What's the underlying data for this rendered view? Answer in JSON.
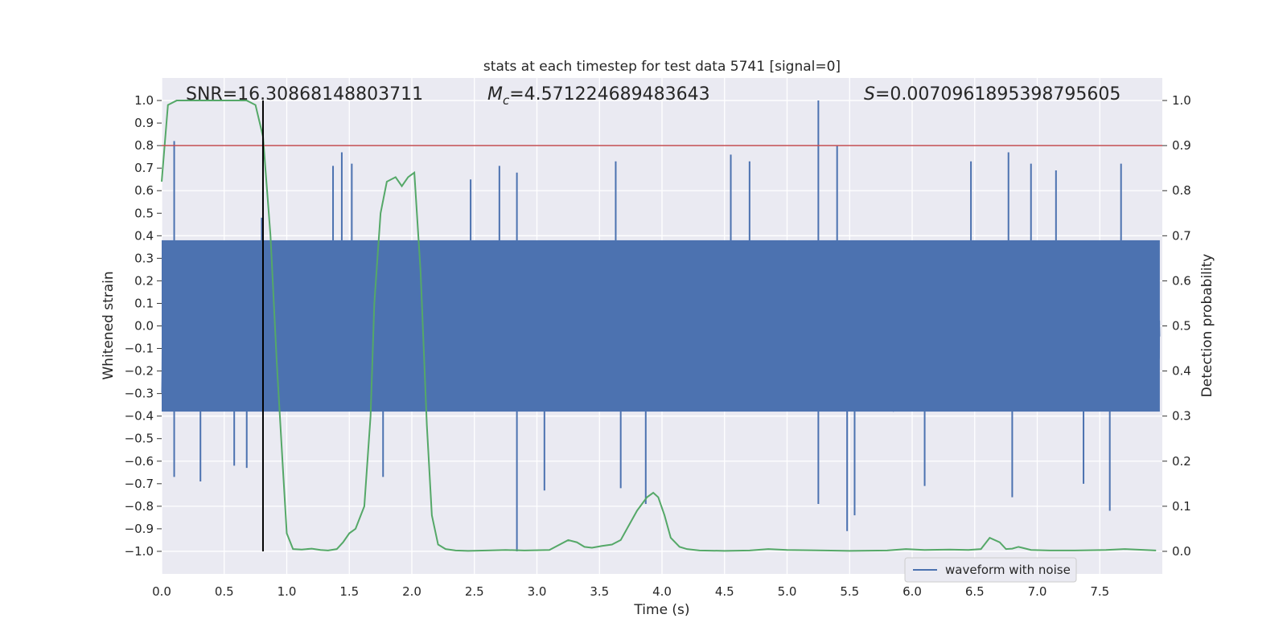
{
  "chart_data": {
    "type": "line",
    "title": "stats at each timestep for test data 5741 [signal=0]",
    "xlabel": "Time (s)",
    "ylabel_left": "Whitened strain",
    "ylabel_right": "Detection probability",
    "xlim": [
      0.0,
      8.0
    ],
    "ylim_left": [
      -1.1,
      1.1
    ],
    "ylim_right": [
      -0.05,
      1.05
    ],
    "x_ticks": [
      0.0,
      0.5,
      1.0,
      1.5,
      2.0,
      2.5,
      3.0,
      3.5,
      4.0,
      4.5,
      5.0,
      5.5,
      6.0,
      6.5,
      7.0,
      7.5
    ],
    "x_tick_labels": [
      "0.0",
      "0.5",
      "1.0",
      "1.5",
      "2.0",
      "2.5",
      "3.0",
      "3.5",
      "4.0",
      "4.5",
      "5.0",
      "5.5",
      "6.0",
      "6.5",
      "7.0",
      "7.5"
    ],
    "y_left_ticks": [
      1.0,
      0.9,
      0.8,
      0.7,
      0.6,
      0.5,
      0.4,
      0.3,
      0.2,
      0.1,
      0.0,
      -0.1,
      -0.2,
      -0.3,
      -0.4,
      -0.5,
      -0.6,
      -0.7,
      -0.8,
      -0.9,
      -1.0
    ],
    "y_left_tick_labels": [
      "1.0",
      "0.9",
      "0.8",
      "0.7",
      "0.6",
      "0.5",
      "0.4",
      "0.3",
      "0.2",
      "0.1",
      "0.0",
      "−0.1",
      "−0.2",
      "−0.3",
      "−0.4",
      "−0.5",
      "−0.6",
      "−0.7",
      "−0.8",
      "−0.9",
      "−1.0"
    ],
    "y_right_ticks": [
      1.0,
      0.9,
      0.8,
      0.7,
      0.6,
      0.5,
      0.4,
      0.3,
      0.2,
      0.1,
      0.0
    ],
    "y_right_tick_labels": [
      "1.0",
      "0.9",
      "0.8",
      "0.7",
      "0.6",
      "0.5",
      "0.4",
      "0.3",
      "0.2",
      "0.1",
      "0.0"
    ],
    "annotations": {
      "snr": "SNR=16.30868148803711",
      "mc_symbol": "M",
      "mc_subscript": "c",
      "mc_value": "=4.571224689483643",
      "s_symbol": "S",
      "s_value": "=0.007096189539879560 5"
    },
    "threshold": {
      "axis": "left",
      "value": 0.8,
      "color": "#c44e52"
    },
    "marker_line": {
      "x": 0.81,
      "y_from": -1.0,
      "y_to": 1.0,
      "color": "#000000"
    },
    "legend": {
      "position": "bottom-right",
      "entries": [
        {
          "label": "waveform with noise",
          "color": "#4c72b0"
        }
      ]
    },
    "series": [
      {
        "name": "waveform with noise",
        "axis": "left",
        "color": "#4c72b0",
        "style": "dense noise, typical amplitude about ±0.4 with spikes",
        "spikes": [
          {
            "x": 0.1,
            "y": 0.82
          },
          {
            "x": 0.1,
            "y": -0.67
          },
          {
            "x": 0.31,
            "y": -0.69
          },
          {
            "x": 0.58,
            "y": -0.62
          },
          {
            "x": 0.68,
            "y": -0.63
          },
          {
            "x": 0.8,
            "y": 0.48
          },
          {
            "x": 1.37,
            "y": 0.71
          },
          {
            "x": 1.44,
            "y": 0.77
          },
          {
            "x": 1.52,
            "y": 0.72
          },
          {
            "x": 1.77,
            "y": -0.67
          },
          {
            "x": 2.47,
            "y": 0.65
          },
          {
            "x": 2.7,
            "y": 0.71
          },
          {
            "x": 2.84,
            "y": -1.0
          },
          {
            "x": 2.84,
            "y": 0.68
          },
          {
            "x": 3.06,
            "y": -0.73
          },
          {
            "x": 3.63,
            "y": 0.73
          },
          {
            "x": 3.67,
            "y": -0.72
          },
          {
            "x": 3.87,
            "y": -0.79
          },
          {
            "x": 4.55,
            "y": 0.76
          },
          {
            "x": 4.7,
            "y": 0.73
          },
          {
            "x": 5.25,
            "y": 1.0
          },
          {
            "x": 5.25,
            "y": -0.79
          },
          {
            "x": 5.4,
            "y": 0.8
          },
          {
            "x": 5.48,
            "y": -0.91
          },
          {
            "x": 5.54,
            "y": -0.84
          },
          {
            "x": 6.1,
            "y": -0.71
          },
          {
            "x": 6.47,
            "y": 0.73
          },
          {
            "x": 6.77,
            "y": 0.77
          },
          {
            "x": 6.8,
            "y": -0.76
          },
          {
            "x": 6.95,
            "y": 0.72
          },
          {
            "x": 7.15,
            "y": 0.69
          },
          {
            "x": 7.37,
            "y": -0.7
          },
          {
            "x": 7.58,
            "y": -0.82
          },
          {
            "x": 7.67,
            "y": 0.72
          }
        ]
      },
      {
        "name": "detection probability",
        "axis": "right",
        "color": "#55a868",
        "x": [
          0.0,
          0.05,
          0.12,
          0.2,
          0.3,
          0.4,
          0.5,
          0.6,
          0.68,
          0.75,
          0.81,
          0.87,
          0.92,
          0.97,
          1.0,
          1.05,
          1.12,
          1.2,
          1.27,
          1.33,
          1.4,
          1.45,
          1.5,
          1.55,
          1.62,
          1.67,
          1.7,
          1.75,
          1.8,
          1.87,
          1.92,
          1.97,
          2.02,
          2.07,
          2.12,
          2.16,
          2.21,
          2.27,
          2.35,
          2.45,
          2.6,
          2.75,
          2.9,
          3.1,
          3.25,
          3.32,
          3.38,
          3.44,
          3.52,
          3.6,
          3.67,
          3.72,
          3.8,
          3.88,
          3.93,
          3.97,
          4.02,
          4.07,
          4.14,
          4.2,
          4.3,
          4.5,
          4.7,
          4.85,
          5.0,
          5.3,
          5.5,
          5.8,
          5.95,
          6.1,
          6.3,
          6.45,
          6.55,
          6.62,
          6.7,
          6.75,
          6.8,
          6.85,
          6.95,
          7.1,
          7.3,
          7.55,
          7.7,
          7.95
        ],
        "y": [
          0.82,
          0.99,
          1.0,
          1.0,
          1.0,
          1.0,
          1.0,
          1.0,
          1.0,
          0.99,
          0.92,
          0.7,
          0.42,
          0.18,
          0.04,
          0.005,
          0.004,
          0.006,
          0.003,
          0.002,
          0.005,
          0.02,
          0.04,
          0.05,
          0.1,
          0.3,
          0.55,
          0.75,
          0.82,
          0.83,
          0.81,
          0.83,
          0.84,
          0.62,
          0.28,
          0.08,
          0.015,
          0.005,
          0.002,
          0.001,
          0.002,
          0.003,
          0.002,
          0.003,
          0.025,
          0.02,
          0.01,
          0.008,
          0.012,
          0.015,
          0.025,
          0.05,
          0.09,
          0.12,
          0.13,
          0.12,
          0.08,
          0.03,
          0.01,
          0.005,
          0.002,
          0.001,
          0.002,
          0.005,
          0.003,
          0.002,
          0.001,
          0.002,
          0.005,
          0.003,
          0.004,
          0.003,
          0.005,
          0.03,
          0.02,
          0.005,
          0.006,
          0.01,
          0.003,
          0.002,
          0.002,
          0.003,
          0.005,
          0.002
        ]
      }
    ]
  }
}
